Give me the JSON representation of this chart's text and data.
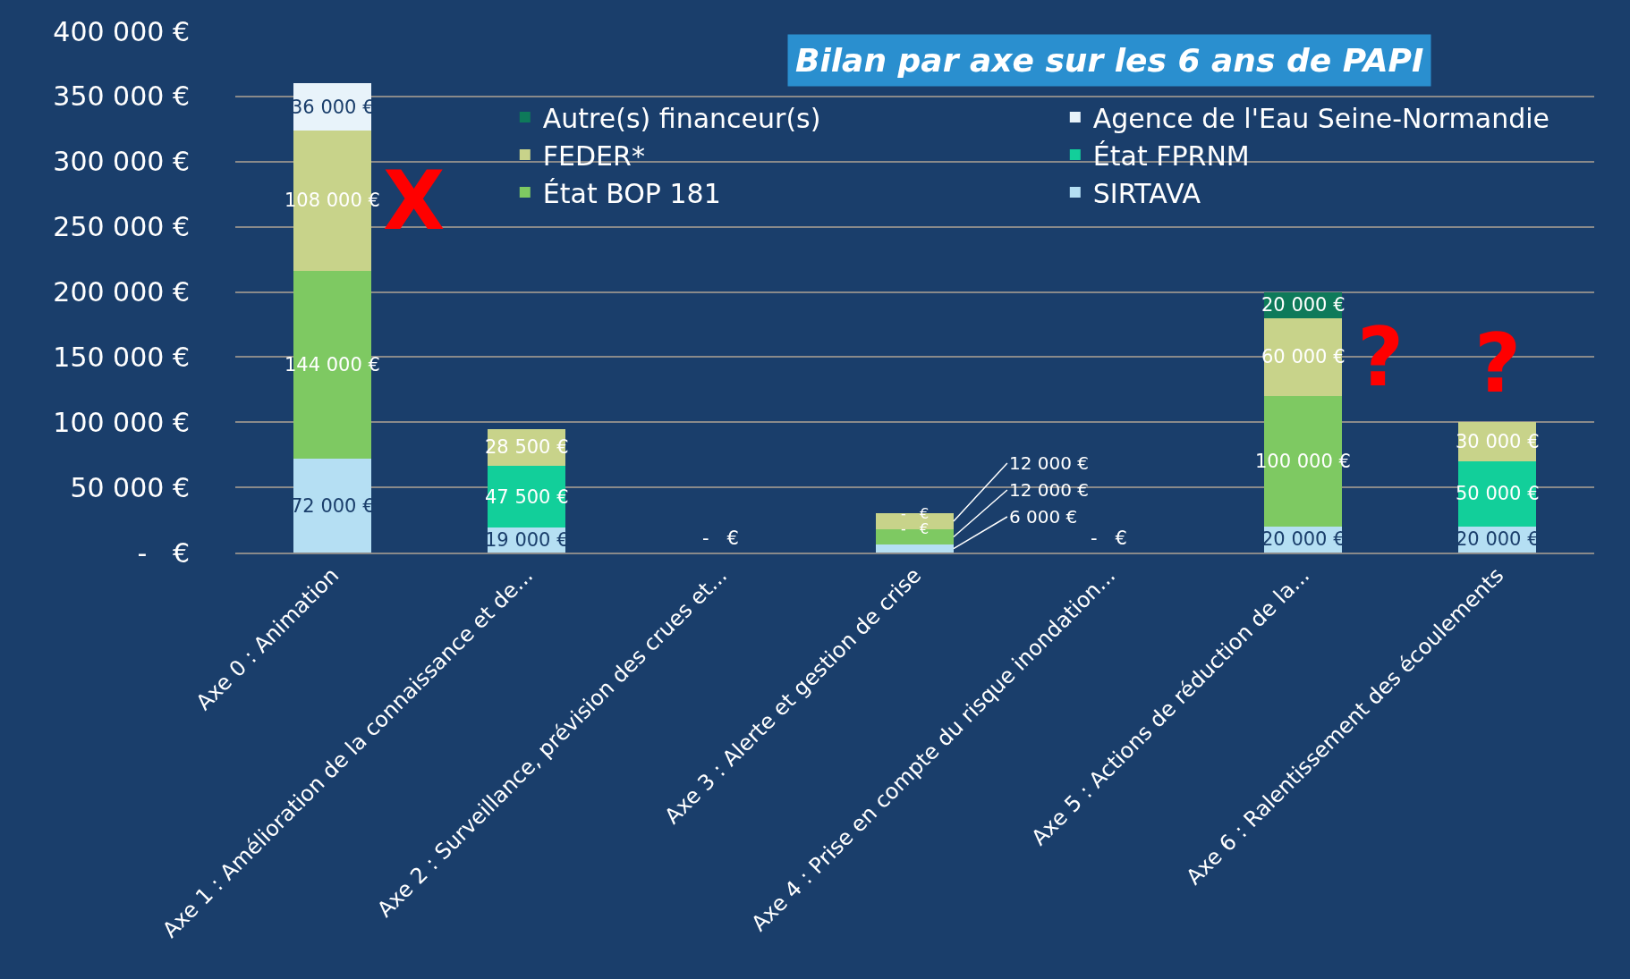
{
  "chart_data": {
    "type": "bar",
    "stacked": true,
    "title": "Bilan par axe sur les 6 ans de PAPI",
    "categories": [
      "Axe 0 : Animation",
      "Axe 1 : Amélioration de la connaissance et de...",
      "Axe 2 : Surveillance, prévision des crues et...",
      "Axe 3 : Alerte et gestion de crise",
      "Axe 4 : Prise en compte du risque inondation...",
      "Axe 5 : Actions de réduction de la...",
      "Axe 6 : Ralentissement des écoulements"
    ],
    "series": [
      {
        "name": "SIRTAVA",
        "color": "#b5dff3",
        "values": [
          72000,
          19000,
          0,
          6000,
          0,
          20000,
          20000
        ],
        "value_labels": [
          "72 000 €",
          "19 000 €",
          "-   €",
          "6 000 €",
          "-   €",
          "20 000 €",
          "20 000 €"
        ]
      },
      {
        "name": "État BOP 181",
        "color": "#7ec962",
        "values": [
          144000,
          null,
          null,
          12000,
          null,
          100000,
          null
        ],
        "value_labels": [
          "144 000 €",
          null,
          null,
          "12 000 €",
          null,
          "100 000 €",
          null
        ]
      },
      {
        "name": "État FPRNM",
        "color": "#12cf9a",
        "values": [
          null,
          47500,
          null,
          0,
          null,
          null,
          50000
        ],
        "value_labels": [
          null,
          "47 500 €",
          null,
          "-   €",
          null,
          null,
          "50 000 €"
        ]
      },
      {
        "name": "FEDER*",
        "color": "#c8d38a",
        "values": [
          108000,
          28500,
          null,
          12000,
          null,
          60000,
          30000
        ],
        "value_labels": [
          "108 000 €",
          "28 500 €",
          null,
          "12 000 €",
          null,
          "60 000 €",
          "30 000 €"
        ]
      },
      {
        "name": "Agence de l'Eau Seine-Normandie",
        "color": "#e8f3fa",
        "values": [
          36000,
          null,
          null,
          0,
          null,
          null,
          null
        ],
        "value_labels": [
          "36 000 €",
          null,
          null,
          "-   €",
          null,
          null,
          null
        ]
      },
      {
        "name": "Autre(s) financeur(s)",
        "color": "#0e7a5a",
        "values": [
          null,
          null,
          null,
          null,
          null,
          20000,
          null
        ],
        "value_labels": [
          null,
          null,
          null,
          null,
          null,
          "20 000 €",
          null
        ]
      }
    ],
    "ylim": [
      0,
      400000
    ],
    "yticks": [
      {
        "value": 0,
        "label": "-   €"
      },
      {
        "value": 50000,
        "label": "50 000 €"
      },
      {
        "value": 100000,
        "label": "100 000 €"
      },
      {
        "value": 150000,
        "label": "150 000 €"
      },
      {
        "value": 200000,
        "label": "200 000 €"
      },
      {
        "value": 250000,
        "label": "250 000 €"
      },
      {
        "value": 300000,
        "label": "300 000 €"
      },
      {
        "value": 350000,
        "label": "350 000 €"
      },
      {
        "value": 400000,
        "label": "400 000 €"
      }
    ],
    "grid": "y",
    "legend": "top right",
    "annotations": [
      "X",
      "?",
      "?"
    ]
  }
}
